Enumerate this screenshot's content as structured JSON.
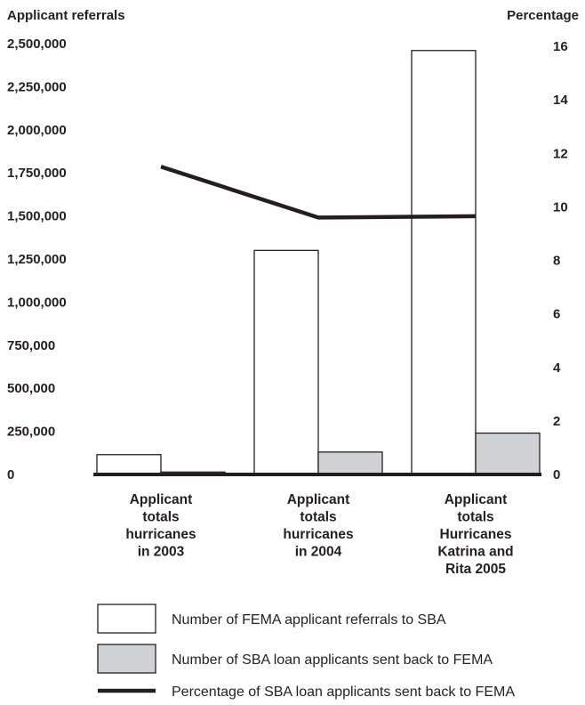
{
  "chart_data": {
    "type": "bar",
    "ylabel_left": "Applicant referrals",
    "ylabel_right": "Percentage",
    "categories": [
      [
        "Applicant",
        "totals",
        "hurricanes",
        "in 2003"
      ],
      [
        "Applicant",
        "totals",
        "hurricanes",
        "in 2004"
      ],
      [
        "Applicant",
        "totals",
        "Hurricanes",
        "Katrina and",
        "Rita 2005"
      ]
    ],
    "left_axis": {
      "ylim": [
        0,
        2500000
      ],
      "ticks": [
        0,
        250000,
        500000,
        750000,
        1000000,
        1250000,
        1500000,
        1750000,
        2000000,
        2250000,
        2500000
      ],
      "tick_labels": [
        "0",
        "250,000",
        "500,000",
        "750,000",
        "1,000,000",
        "1,250,000",
        "1,500,000",
        "1,750,000",
        "2,000,000",
        "2,250,000",
        "2,500,000"
      ]
    },
    "right_axis": {
      "ylim": [
        0,
        16.5
      ],
      "ticks": [
        0,
        2,
        4,
        6,
        8,
        10,
        12,
        14,
        16
      ],
      "tick_labels": [
        "0",
        "2",
        "4",
        "6",
        "8",
        "10",
        "12",
        "14",
        "16"
      ]
    },
    "series": [
      {
        "name": "Number of FEMA applicant referrals to SBA",
        "kind": "bar",
        "axis": "left",
        "color": "#ffffff",
        "values": [
          115000,
          1300000,
          2460000
        ]
      },
      {
        "name": "Number of SBA loan applicants sent back to FEMA",
        "kind": "bar",
        "axis": "left",
        "color": "#d1d2d4",
        "values": [
          14000,
          130000,
          240000
        ]
      },
      {
        "name": "Percentage of SBA loan applicants sent back to FEMA",
        "kind": "line",
        "axis": "right",
        "color": "#231f20",
        "values": [
          11.5,
          9.6,
          9.65
        ]
      }
    ],
    "grid": false,
    "legend_position": "bottom"
  }
}
